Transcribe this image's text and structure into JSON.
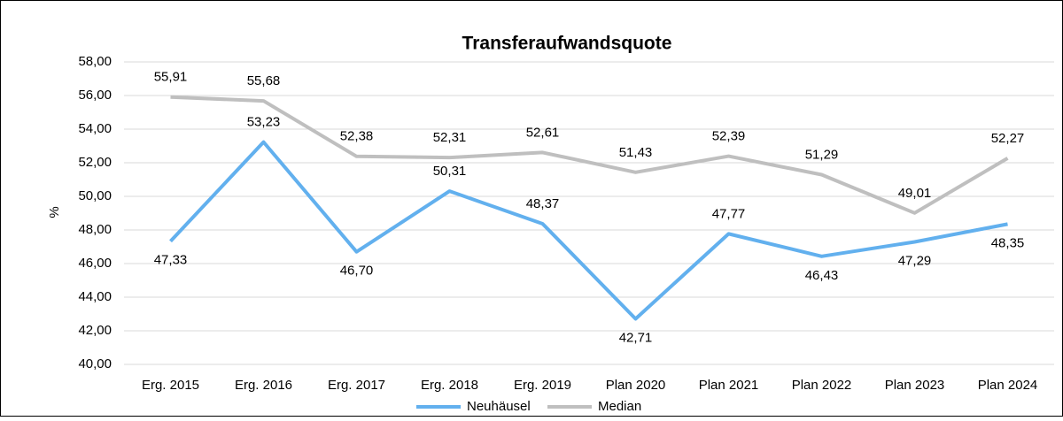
{
  "chart_data": {
    "type": "line",
    "title": "Transferaufwandsquote",
    "y_label": "%",
    "categories": [
      "Erg. 2015",
      "Erg. 2016",
      "Erg. 2017",
      "Erg. 2018",
      "Erg. 2019",
      "Plan 2020",
      "Plan 2021",
      "Plan 2022",
      "Plan 2023",
      "Plan 2024"
    ],
    "series": [
      {
        "name": "Neuhäusel",
        "color": "#62b0ee",
        "values": [
          47.33,
          53.23,
          46.7,
          50.31,
          48.37,
          42.71,
          47.77,
          46.43,
          47.29,
          48.35
        ],
        "value_labels": [
          "47,33",
          "53,23",
          "46,70",
          "50,31",
          "48,37",
          "42,71",
          "47,77",
          "46,43",
          "47,29",
          "48,35"
        ]
      },
      {
        "name": "Median",
        "color": "#bfbfbf",
        "values": [
          55.91,
          55.68,
          52.38,
          52.31,
          52.61,
          51.43,
          52.39,
          51.29,
          49.01,
          52.27
        ],
        "value_labels": [
          "55,91",
          "55,68",
          "52,38",
          "52,31",
          "52,61",
          "51,43",
          "52,39",
          "51,29",
          "49,01",
          "52,27"
        ]
      }
    ],
    "ylim": [
      40,
      58
    ],
    "yticks": [
      {
        "value": 40,
        "label": "40,00"
      },
      {
        "value": 42,
        "label": "42,00"
      },
      {
        "value": 44,
        "label": "44,00"
      },
      {
        "value": 46,
        "label": "46,00"
      },
      {
        "value": 48,
        "label": "48,00"
      },
      {
        "value": 50,
        "label": "50,00"
      },
      {
        "value": 52,
        "label": "52,00"
      },
      {
        "value": 54,
        "label": "54,00"
      },
      {
        "value": 56,
        "label": "56,00"
      },
      {
        "value": 58,
        "label": "58,00"
      }
    ],
    "grid": true,
    "legend": "bottom"
  }
}
